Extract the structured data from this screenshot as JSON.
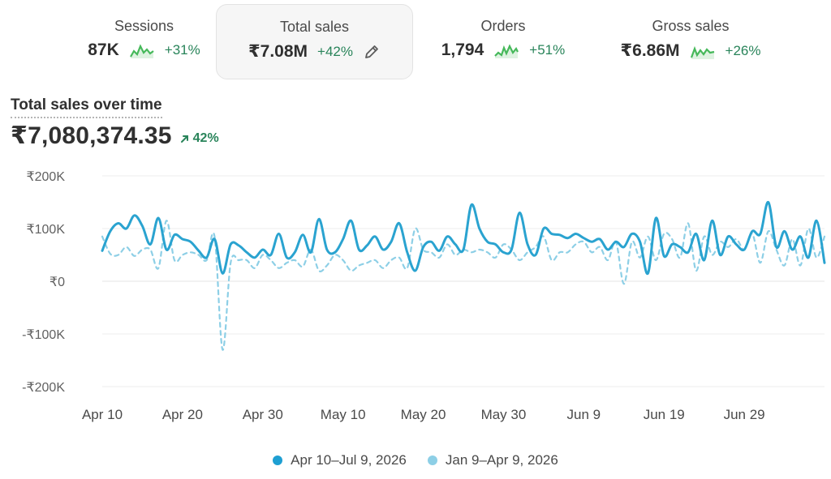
{
  "metrics": [
    {
      "title": "Sessions",
      "value": "87K",
      "delta": "+31%"
    },
    {
      "title": "Total sales",
      "value": "₹7.08M",
      "delta": "+42%"
    },
    {
      "title": "Orders",
      "value": "1,794",
      "delta": "+51%"
    },
    {
      "title": "Gross sales",
      "value": "₹6.86M",
      "delta": "+26%"
    }
  ],
  "colors": {
    "primary": "#2aa3d0",
    "comparison": "#8dcfe6",
    "positive": "#29845a",
    "spark": "#46b95b"
  },
  "chart": {
    "title": "Total sales over time",
    "total": "₹7,080,374.35",
    "delta": "42%"
  },
  "chart_data": {
    "type": "line",
    "title": "Total sales over time",
    "x": [
      "Apr 10",
      "Apr 11",
      "Apr 12",
      "Apr 13",
      "Apr 14",
      "Apr 15",
      "Apr 16",
      "Apr 17",
      "Apr 18",
      "Apr 19",
      "Apr 20",
      "Apr 21",
      "Apr 22",
      "Apr 23",
      "Apr 24",
      "Apr 25",
      "Apr 26",
      "Apr 27",
      "Apr 28",
      "Apr 29",
      "Apr 30",
      "May 1",
      "May 2",
      "May 3",
      "May 4",
      "May 5",
      "May 6",
      "May 7",
      "May 8",
      "May 9",
      "May 10",
      "May 11",
      "May 12",
      "May 13",
      "May 14",
      "May 15",
      "May 16",
      "May 17",
      "May 18",
      "May 19",
      "May 20",
      "May 21",
      "May 22",
      "May 23",
      "May 24",
      "May 25",
      "May 26",
      "May 27",
      "May 28",
      "May 29",
      "May 30",
      "May 31",
      "Jun 1",
      "Jun 2",
      "Jun 3",
      "Jun 4",
      "Jun 5",
      "Jun 6",
      "Jun 7",
      "Jun 8",
      "Jun 9",
      "Jun 10",
      "Jun 11",
      "Jun 12",
      "Jun 13",
      "Jun 14",
      "Jun 15",
      "Jun 16",
      "Jun 17",
      "Jun 18",
      "Jun 19",
      "Jun 20",
      "Jun 21",
      "Jun 22",
      "Jun 23",
      "Jun 24",
      "Jun 25",
      "Jun 26",
      "Jun 27",
      "Jun 28",
      "Jun 29",
      "Jun 30",
      "Jul 1",
      "Jul 2",
      "Jul 3",
      "Jul 4",
      "Jul 5",
      "Jul 6",
      "Jul 7",
      "Jul 8",
      "Jul 9"
    ],
    "x_ticks": [
      "Apr 10",
      "Apr 20",
      "Apr 30",
      "May 10",
      "May 20",
      "May 30",
      "Jun 9",
      "Jun 19",
      "Jun 29"
    ],
    "series": [
      {
        "name": "Apr 10–Jul 9, 2026",
        "style": "solid",
        "values": [
          58,
          95,
          110,
          100,
          125,
          105,
          70,
          120,
          60,
          88,
          80,
          75,
          58,
          45,
          80,
          15,
          70,
          68,
          55,
          45,
          60,
          50,
          90,
          45,
          55,
          88,
          55,
          118,
          60,
          55,
          80,
          115,
          60,
          68,
          85,
          60,
          75,
          110,
          55,
          20,
          65,
          75,
          58,
          85,
          70,
          60,
          145,
          100,
          75,
          70,
          55,
          60,
          130,
          70,
          50,
          100,
          90,
          88,
          82,
          90,
          82,
          75,
          80,
          60,
          75,
          65,
          90,
          75,
          15,
          120,
          48,
          70,
          65,
          55,
          90,
          40,
          115,
          50,
          85,
          70,
          60,
          95,
          90,
          150,
          65,
          95,
          60,
          85,
          45,
          115,
          35
        ],
        "color": "#2aa3d0"
      },
      {
        "name": "Jan 9–Apr 9, 2026",
        "style": "dashed",
        "values": [
          85,
          52,
          50,
          65,
          48,
          60,
          60,
          25,
          115,
          40,
          50,
          55,
          50,
          40,
          85,
          -130,
          35,
          40,
          40,
          25,
          50,
          40,
          25,
          35,
          40,
          28,
          60,
          20,
          30,
          50,
          40,
          20,
          30,
          35,
          40,
          25,
          40,
          45,
          25,
          100,
          60,
          55,
          45,
          70,
          50,
          60,
          55,
          60,
          55,
          45,
          70,
          60,
          40,
          55,
          65,
          85,
          40,
          55,
          55,
          70,
          75,
          55,
          65,
          40,
          75,
          -5,
          75,
          45,
          85,
          40,
          90,
          80,
          45,
          110,
          20,
          85,
          50,
          75,
          65,
          80,
          60,
          90,
          35,
          95,
          60,
          30,
          80,
          30,
          100,
          45,
          85
        ],
        "color": "#8dcfe6"
      }
    ],
    "ylim": [
      -200000,
      200000
    ],
    "y_unit_scale": 1000,
    "y_ticks": [
      200,
      100,
      0,
      -100,
      -200
    ],
    "y_tick_labels": [
      "₹200K",
      "₹100K",
      "₹0",
      "-₹100K",
      "-₹200K"
    ],
    "grid": true,
    "legend_position": "bottom-center"
  }
}
